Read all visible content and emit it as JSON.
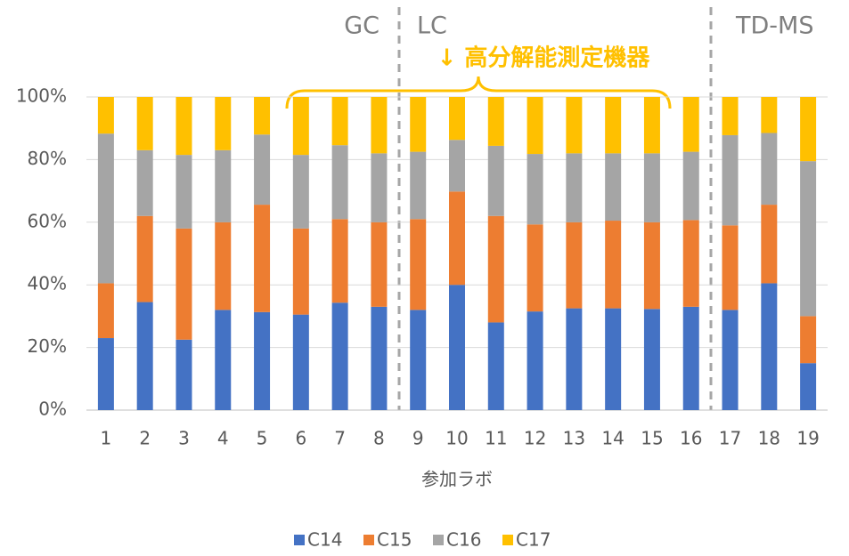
{
  "chart_data": {
    "type": "stacked-bar",
    "categories": [
      "1",
      "2",
      "3",
      "4",
      "5",
      "6",
      "7",
      "8",
      "9",
      "10",
      "11",
      "12",
      "13",
      "14",
      "15",
      "16",
      "17",
      "18",
      "19"
    ],
    "series": [
      {
        "name": "C14",
        "color": "#4472c4",
        "values": [
          23,
          34.5,
          22.5,
          32,
          31.3,
          30.5,
          34.3,
          33,
          32,
          40,
          28,
          31.5,
          32.5,
          32.5,
          32.3,
          33,
          32,
          40.5,
          15
        ]
      },
      {
        "name": "C15",
        "color": "#ed7d31",
        "values": [
          17.5,
          27.5,
          35.5,
          28,
          34.3,
          27.5,
          26.7,
          27,
          29,
          29.8,
          34,
          27.8,
          27.5,
          28,
          27.7,
          27.7,
          27,
          25.1,
          15
        ]
      },
      {
        "name": "C16",
        "color": "#a5a5a5",
        "values": [
          47.8,
          21,
          23.5,
          23,
          22.4,
          23.5,
          23.6,
          22,
          21.5,
          16.5,
          22.4,
          22.5,
          22,
          21.5,
          22,
          21.8,
          28.8,
          22.9,
          49.5
        ]
      },
      {
        "name": "C17",
        "color": "#ffc000",
        "values": [
          11.7,
          17,
          18.5,
          17,
          12,
          18.5,
          15.4,
          18,
          17.5,
          13.7,
          15.6,
          18.2,
          18,
          18,
          18,
          17.5,
          12.2,
          11.5,
          20.5
        ]
      }
    ],
    "x_label": "参加ラボ",
    "ylim": [
      0,
      100
    ],
    "yticks": [
      {
        "value": 0,
        "label": "0%"
      },
      {
        "value": 20,
        "label": "20%"
      },
      {
        "value": 40,
        "label": "40%"
      },
      {
        "value": 60,
        "label": "60%"
      },
      {
        "value": 80,
        "label": "80%"
      },
      {
        "value": 100,
        "label": "100%"
      }
    ],
    "grid": true,
    "legend": "bottom",
    "annotations": [
      "GC",
      "LC",
      "TD-MS",
      "↓ 高分解能測定機器"
    ]
  }
}
